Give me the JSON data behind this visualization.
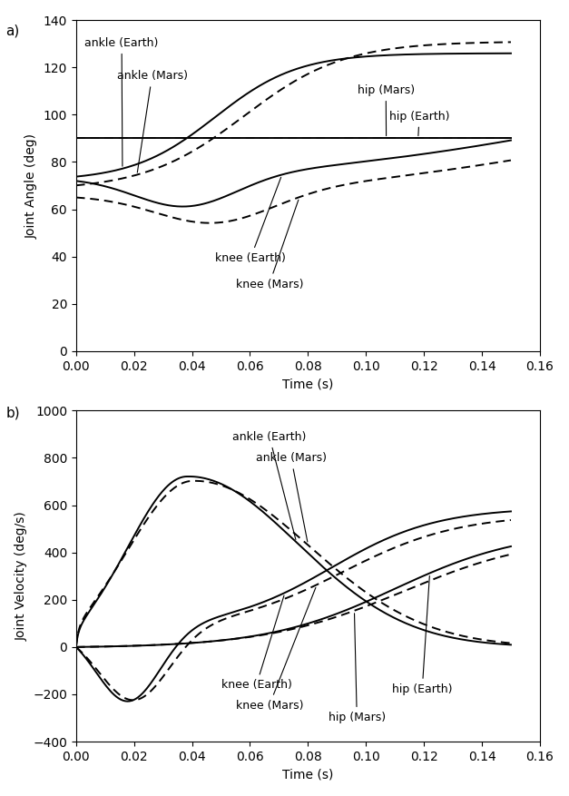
{
  "xlabel": "Time (s)",
  "ylabel_a": "Joint Angle (deg)",
  "ylabel_b": "Joint Velocity (deg/s)",
  "xlim": [
    0.0,
    0.16
  ],
  "ylim_a": [
    0,
    140
  ],
  "ylim_b": [
    -400,
    1000
  ],
  "xticks": [
    0.0,
    0.02,
    0.04,
    0.06,
    0.08,
    0.1,
    0.12,
    0.14,
    0.16
  ],
  "yticks_a": [
    0,
    20,
    40,
    60,
    80,
    100,
    120,
    140
  ],
  "yticks_b": [
    -400,
    -200,
    0,
    200,
    400,
    600,
    800,
    1000
  ],
  "line_color": "#000000",
  "line_width": 1.4,
  "background_color": "#ffffff"
}
